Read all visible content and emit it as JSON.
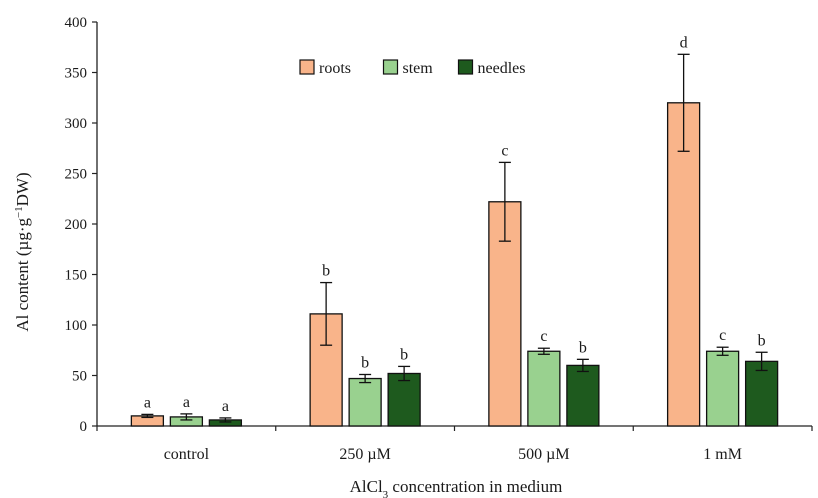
{
  "chart_data": {
    "type": "bar",
    "categories": [
      "control",
      "250 µM",
      "500 µM",
      "1 mM"
    ],
    "series": [
      {
        "name": "roots",
        "color": "#f9b48a",
        "values": [
          10,
          111,
          222,
          320
        ],
        "errors": [
          1.5,
          31,
          39,
          48
        ],
        "letters": [
          "a",
          "b",
          "c",
          "d"
        ]
      },
      {
        "name": "stem",
        "color": "#99d18f",
        "values": [
          9,
          47,
          74,
          74
        ],
        "errors": [
          3,
          4,
          3,
          4
        ],
        "letters": [
          "a",
          "b",
          "c",
          "c"
        ]
      },
      {
        "name": "needles",
        "color": "#1e5a1e",
        "values": [
          6,
          52,
          60,
          64
        ],
        "errors": [
          2,
          7,
          6,
          9
        ],
        "letters": [
          "a",
          "b",
          "b",
          "b"
        ]
      }
    ],
    "ylim": [
      0,
      400
    ],
    "yticks": [
      0,
      50,
      100,
      150,
      200,
      250,
      300,
      350,
      400
    ],
    "ylabel": {
      "main": "Al content (µg·g",
      "sup": "−1",
      "unit": "DW)"
    },
    "xlabel": {
      "pre": "AlCl",
      "sub": "3",
      "post": " concentration in medium"
    },
    "legend_position": "top-center",
    "grid": false
  }
}
